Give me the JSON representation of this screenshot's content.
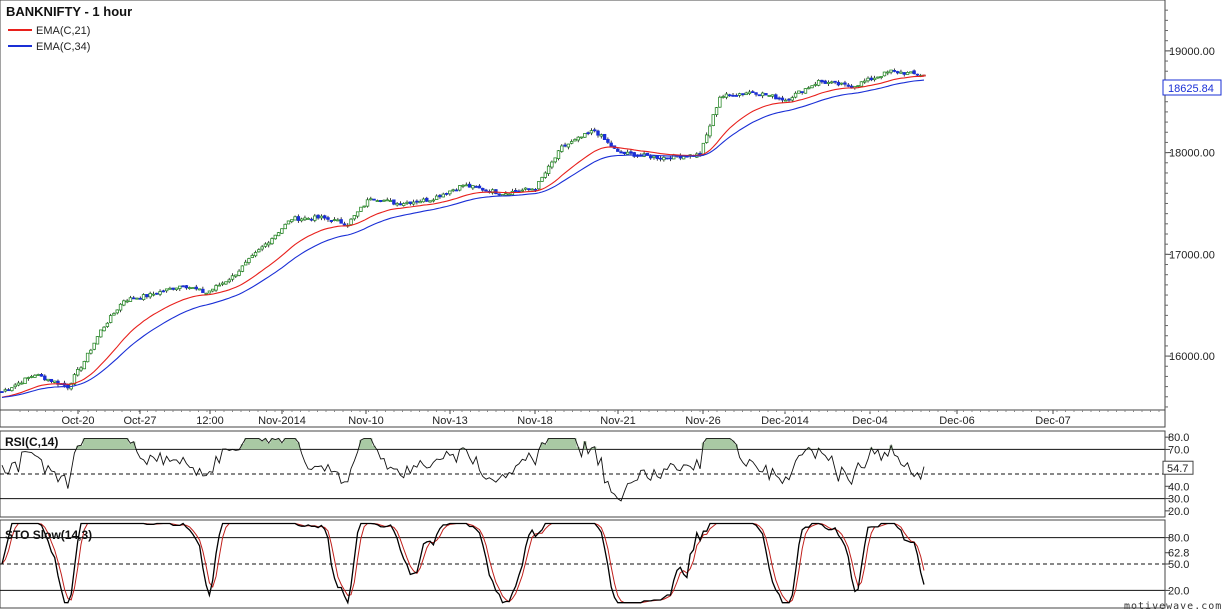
{
  "chart_data": {
    "type": "candlestick",
    "title": "BANKNIFTY - 1 hour",
    "legend": [
      {
        "name": "EMA(C,21)",
        "color": "#e8201c"
      },
      {
        "name": "EMA(C,34)",
        "color": "#1a2fd6"
      }
    ],
    "x_tick_labels": [
      "Oct-20",
      "Oct-27",
      "12:00",
      "Nov-2014",
      "Nov-10",
      "Nov-13",
      "Nov-18",
      "Nov-21",
      "Nov-26",
      "Dec-2014",
      "Dec-04",
      "Dec-06",
      "Dec-07"
    ],
    "price_axis": {
      "ylim": [
        15470,
        19500
      ],
      "tick_labels": [
        "19000.00",
        "18000.00",
        "17000.00",
        "16000.00"
      ],
      "ticks": [
        19000,
        18000,
        17000,
        16000
      ],
      "last_price": "18625.84"
    },
    "price_keypoints": [
      [
        0,
        15650
      ],
      [
        10,
        15820
      ],
      [
        20,
        15700
      ],
      [
        25,
        15950
      ],
      [
        30,
        16250
      ],
      [
        37,
        16550
      ],
      [
        45,
        16600
      ],
      [
        55,
        16700
      ],
      [
        62,
        16620
      ],
      [
        70,
        16780
      ],
      [
        80,
        17100
      ],
      [
        88,
        17350
      ],
      [
        97,
        17360
      ],
      [
        105,
        17300
      ],
      [
        112,
        17560
      ],
      [
        120,
        17500
      ],
      [
        130,
        17540
      ],
      [
        140,
        17680
      ],
      [
        152,
        17600
      ],
      [
        162,
        17650
      ],
      [
        170,
        18050
      ],
      [
        180,
        18220
      ],
      [
        187,
        18000
      ],
      [
        200,
        17950
      ],
      [
        212,
        17980
      ],
      [
        218,
        18550
      ],
      [
        228,
        18600
      ],
      [
        238,
        18520
      ],
      [
        248,
        18700
      ],
      [
        258,
        18650
      ],
      [
        270,
        18800
      ],
      [
        280,
        18760
      ]
    ],
    "candle_count": 281,
    "ema_series": [
      {
        "name": "EMA(C,21)",
        "period": 21,
        "color": "#e8201c"
      },
      {
        "name": "EMA(C,34)",
        "period": 34,
        "color": "#1a2fd6"
      }
    ],
    "rsi": {
      "title": "RSI(C,14)",
      "ylim": [
        15,
        85
      ],
      "tick_labels": [
        "80.0",
        "70.0",
        "40.0",
        "30.0",
        "20.0"
      ],
      "ticks": [
        80,
        70,
        40,
        30,
        20
      ],
      "last_value": "54.7",
      "overbought": 70,
      "oversold": 30,
      "midline": 50,
      "fill_color": "#a9c9a4"
    },
    "stochastic": {
      "title": "STO Slow(14,3)",
      "ylim": [
        0,
        100
      ],
      "tick_labels": [
        "80.0",
        "62.8",
        "50.0",
        "20.0"
      ],
      "ticks": [
        80,
        62.8,
        50,
        20
      ],
      "upper": 80,
      "midline": 50,
      "lower": 20,
      "k_color": "#000000",
      "d_color": "#c0201c"
    },
    "up_candle_color": "#2a8a2a",
    "down_candle_color": "#1a2fd6",
    "last_candle_color": "#c0201c"
  },
  "watermark": "motivewave.com"
}
